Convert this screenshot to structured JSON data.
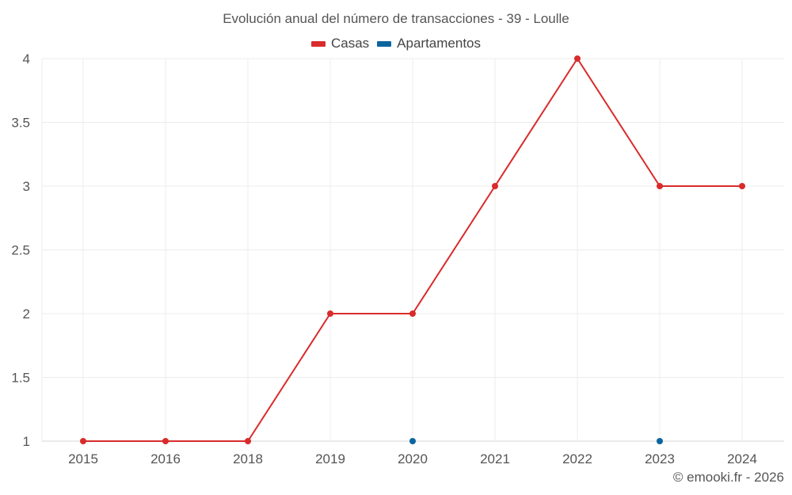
{
  "chart_data": {
    "type": "line",
    "title": "Evolución anual del número de transacciones - 39 - Loulle",
    "categories": [
      "2015",
      "2016",
      "2018",
      "2019",
      "2020",
      "2021",
      "2022",
      "2023",
      "2024"
    ],
    "series": [
      {
        "name": "Casas",
        "color": "#d92b2b",
        "values": [
          1,
          1,
          1,
          2,
          2,
          3,
          4,
          3,
          3
        ]
      },
      {
        "name": "Apartamentos",
        "color": "#0c659e",
        "values": [
          null,
          null,
          null,
          null,
          1,
          null,
          null,
          1,
          null
        ]
      }
    ],
    "xlabel": "",
    "ylabel": "",
    "ylim": [
      1,
      4
    ],
    "yticks": [
      "1",
      "1.5",
      "2",
      "2.5",
      "3",
      "3.5",
      "4"
    ],
    "grid": true,
    "legend_position": "top"
  },
  "header": {
    "title": "Evolución anual del número de transacciones - 39 - Loulle"
  },
  "legend": {
    "items": [
      {
        "label": "Casas",
        "color": "#d92b2b"
      },
      {
        "label": "Apartamentos",
        "color": "#0c659e"
      }
    ]
  },
  "footer": {
    "credit": "© emooki.fr - 2026"
  }
}
